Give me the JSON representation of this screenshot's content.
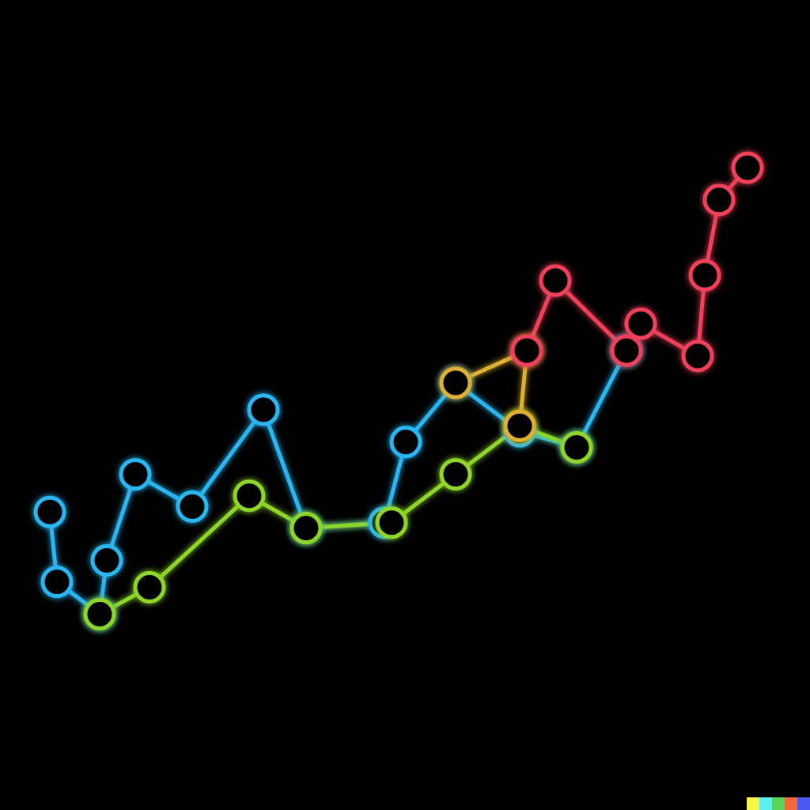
{
  "chart_data": {
    "type": "line",
    "xlim": [
      -2,
      100
    ],
    "ylim": [
      0,
      100
    ],
    "series": [
      {
        "color": "#2cb6f2",
        "x": [
          -1,
          0,
          6,
          7,
          11,
          19,
          29,
          35,
          46,
          49,
          56,
          65,
          73,
          80
        ],
        "values": [
          21,
          8,
          2,
          12,
          28,
          22,
          40,
          18,
          19,
          34,
          45,
          36,
          33,
          51
        ]
      },
      {
        "color": "#8fd62a",
        "x": [
          6,
          13,
          27,
          35,
          47,
          56,
          65,
          73
        ],
        "values": [
          2,
          7,
          24,
          18,
          19,
          28,
          37,
          33
        ]
      },
      {
        "color": "#e0b030",
        "x": [
          56,
          66,
          65
        ],
        "values": [
          45,
          51,
          37
        ]
      },
      {
        "color": "#f0405a",
        "x": [
          66,
          70,
          80,
          82,
          90,
          91,
          93,
          97
        ],
        "values": [
          51,
          64,
          51,
          56,
          50,
          65,
          79,
          85
        ]
      }
    ]
  }
}
